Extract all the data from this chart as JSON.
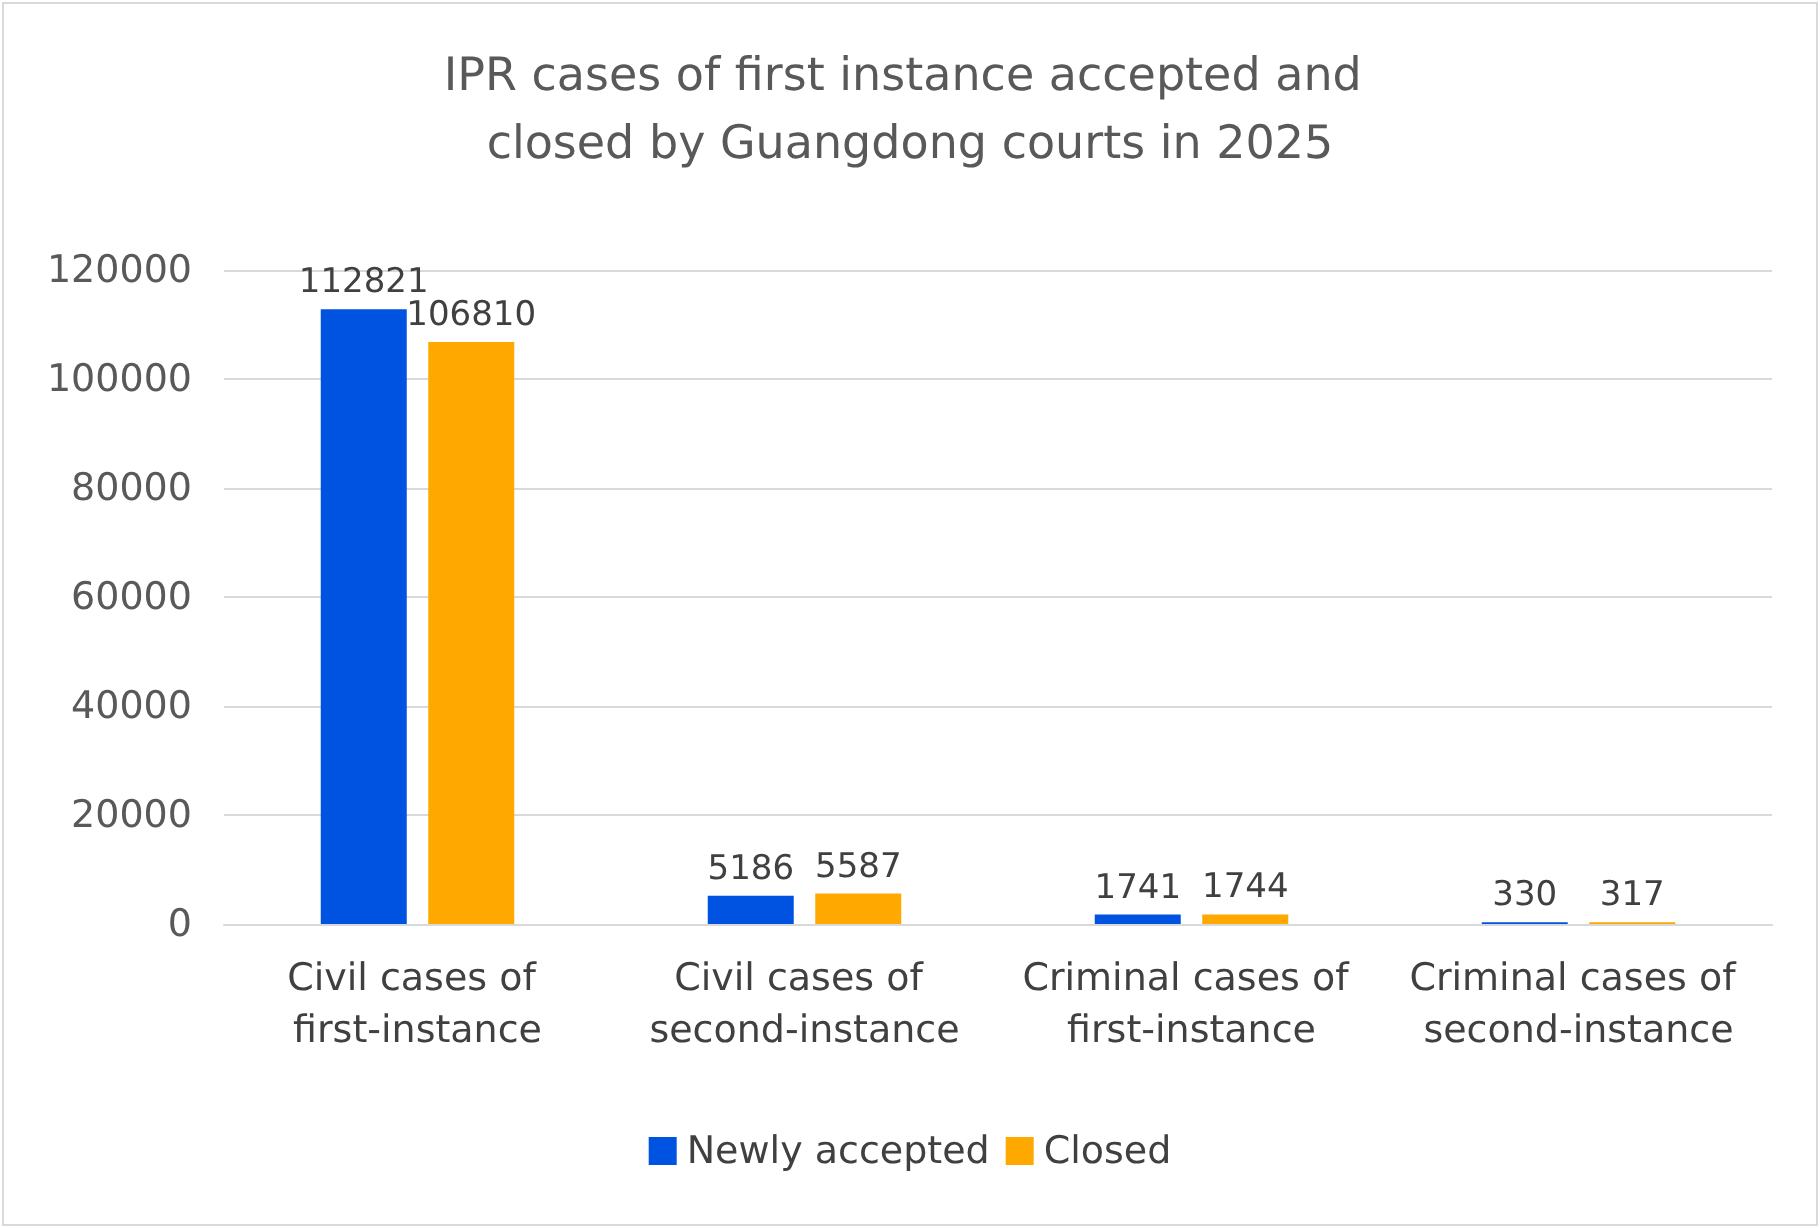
{
  "chart_data": {
    "type": "bar",
    "title": "IPR cases of first instance accepted and closed by Guangdong courts in 2025",
    "categories": [
      "Civil cases of first-instance",
      "Civil cases of second-instance",
      "Criminal cases of first-instance",
      "Criminal cases of second-instance"
    ],
    "series": [
      {
        "name": "Newly accepted",
        "color": "#0052e0",
        "values": [
          112821,
          5186,
          1741,
          330
        ]
      },
      {
        "name": "Closed",
        "color": "#ffa800",
        "values": [
          106810,
          5587,
          1744,
          317
        ]
      }
    ],
    "ylim": [
      0,
      120000
    ],
    "yticks": [
      0,
      20000,
      40000,
      60000,
      80000,
      100000,
      120000
    ],
    "grid": "y",
    "legend": "bottom",
    "data_labels": true
  }
}
